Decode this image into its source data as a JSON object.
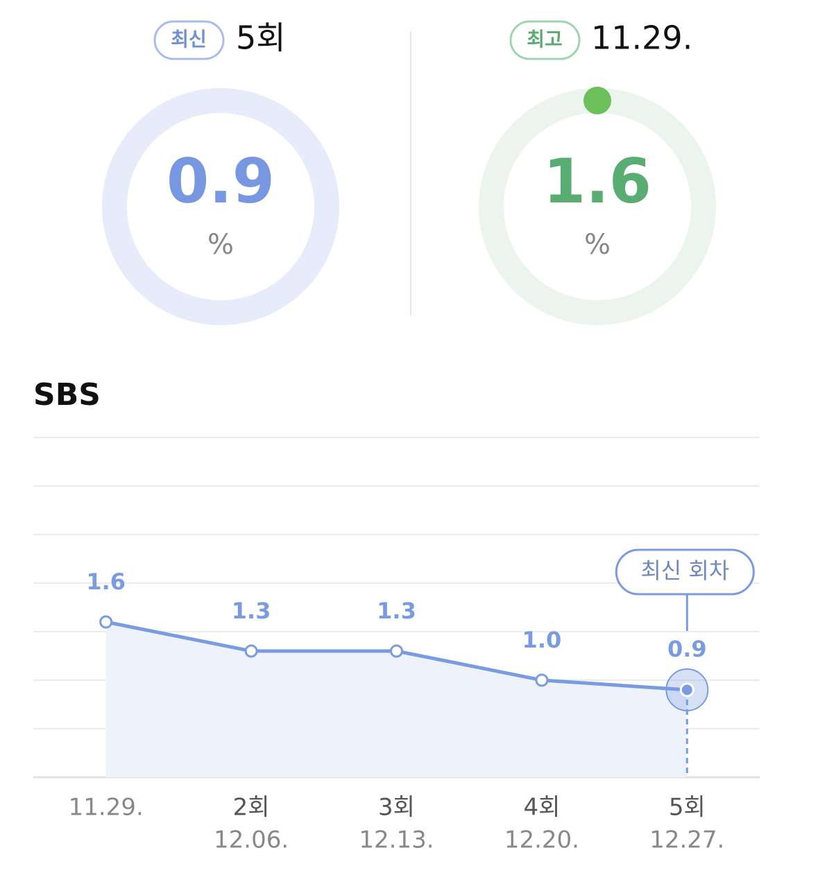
{
  "summary": {
    "latest": {
      "badge": "최신",
      "label": "5회",
      "value": 0.9,
      "unit": "%"
    },
    "best": {
      "badge": "최고",
      "label": "11.29.",
      "value": 1.6,
      "unit": "%"
    }
  },
  "chart_data": {
    "type": "line",
    "title": "SBS",
    "categories": [
      "11.29.",
      "12.06.",
      "12.13.",
      "12.20.",
      "12.27."
    ],
    "episodes": [
      null,
      "2회",
      "3회",
      "4회",
      "5회"
    ],
    "values": [
      1.6,
      1.3,
      1.3,
      1.0,
      0.9
    ],
    "value_labels": [
      "1.6",
      "1.3",
      "1.3",
      "1.0",
      "0.9"
    ],
    "color": "#7b9be0",
    "ylim": [
      0,
      3.5
    ],
    "yticks": [
      0,
      0.5,
      1,
      1.5,
      2,
      2.5,
      3,
      3.5
    ],
    "grid": true,
    "annotation": "최신 회차"
  }
}
